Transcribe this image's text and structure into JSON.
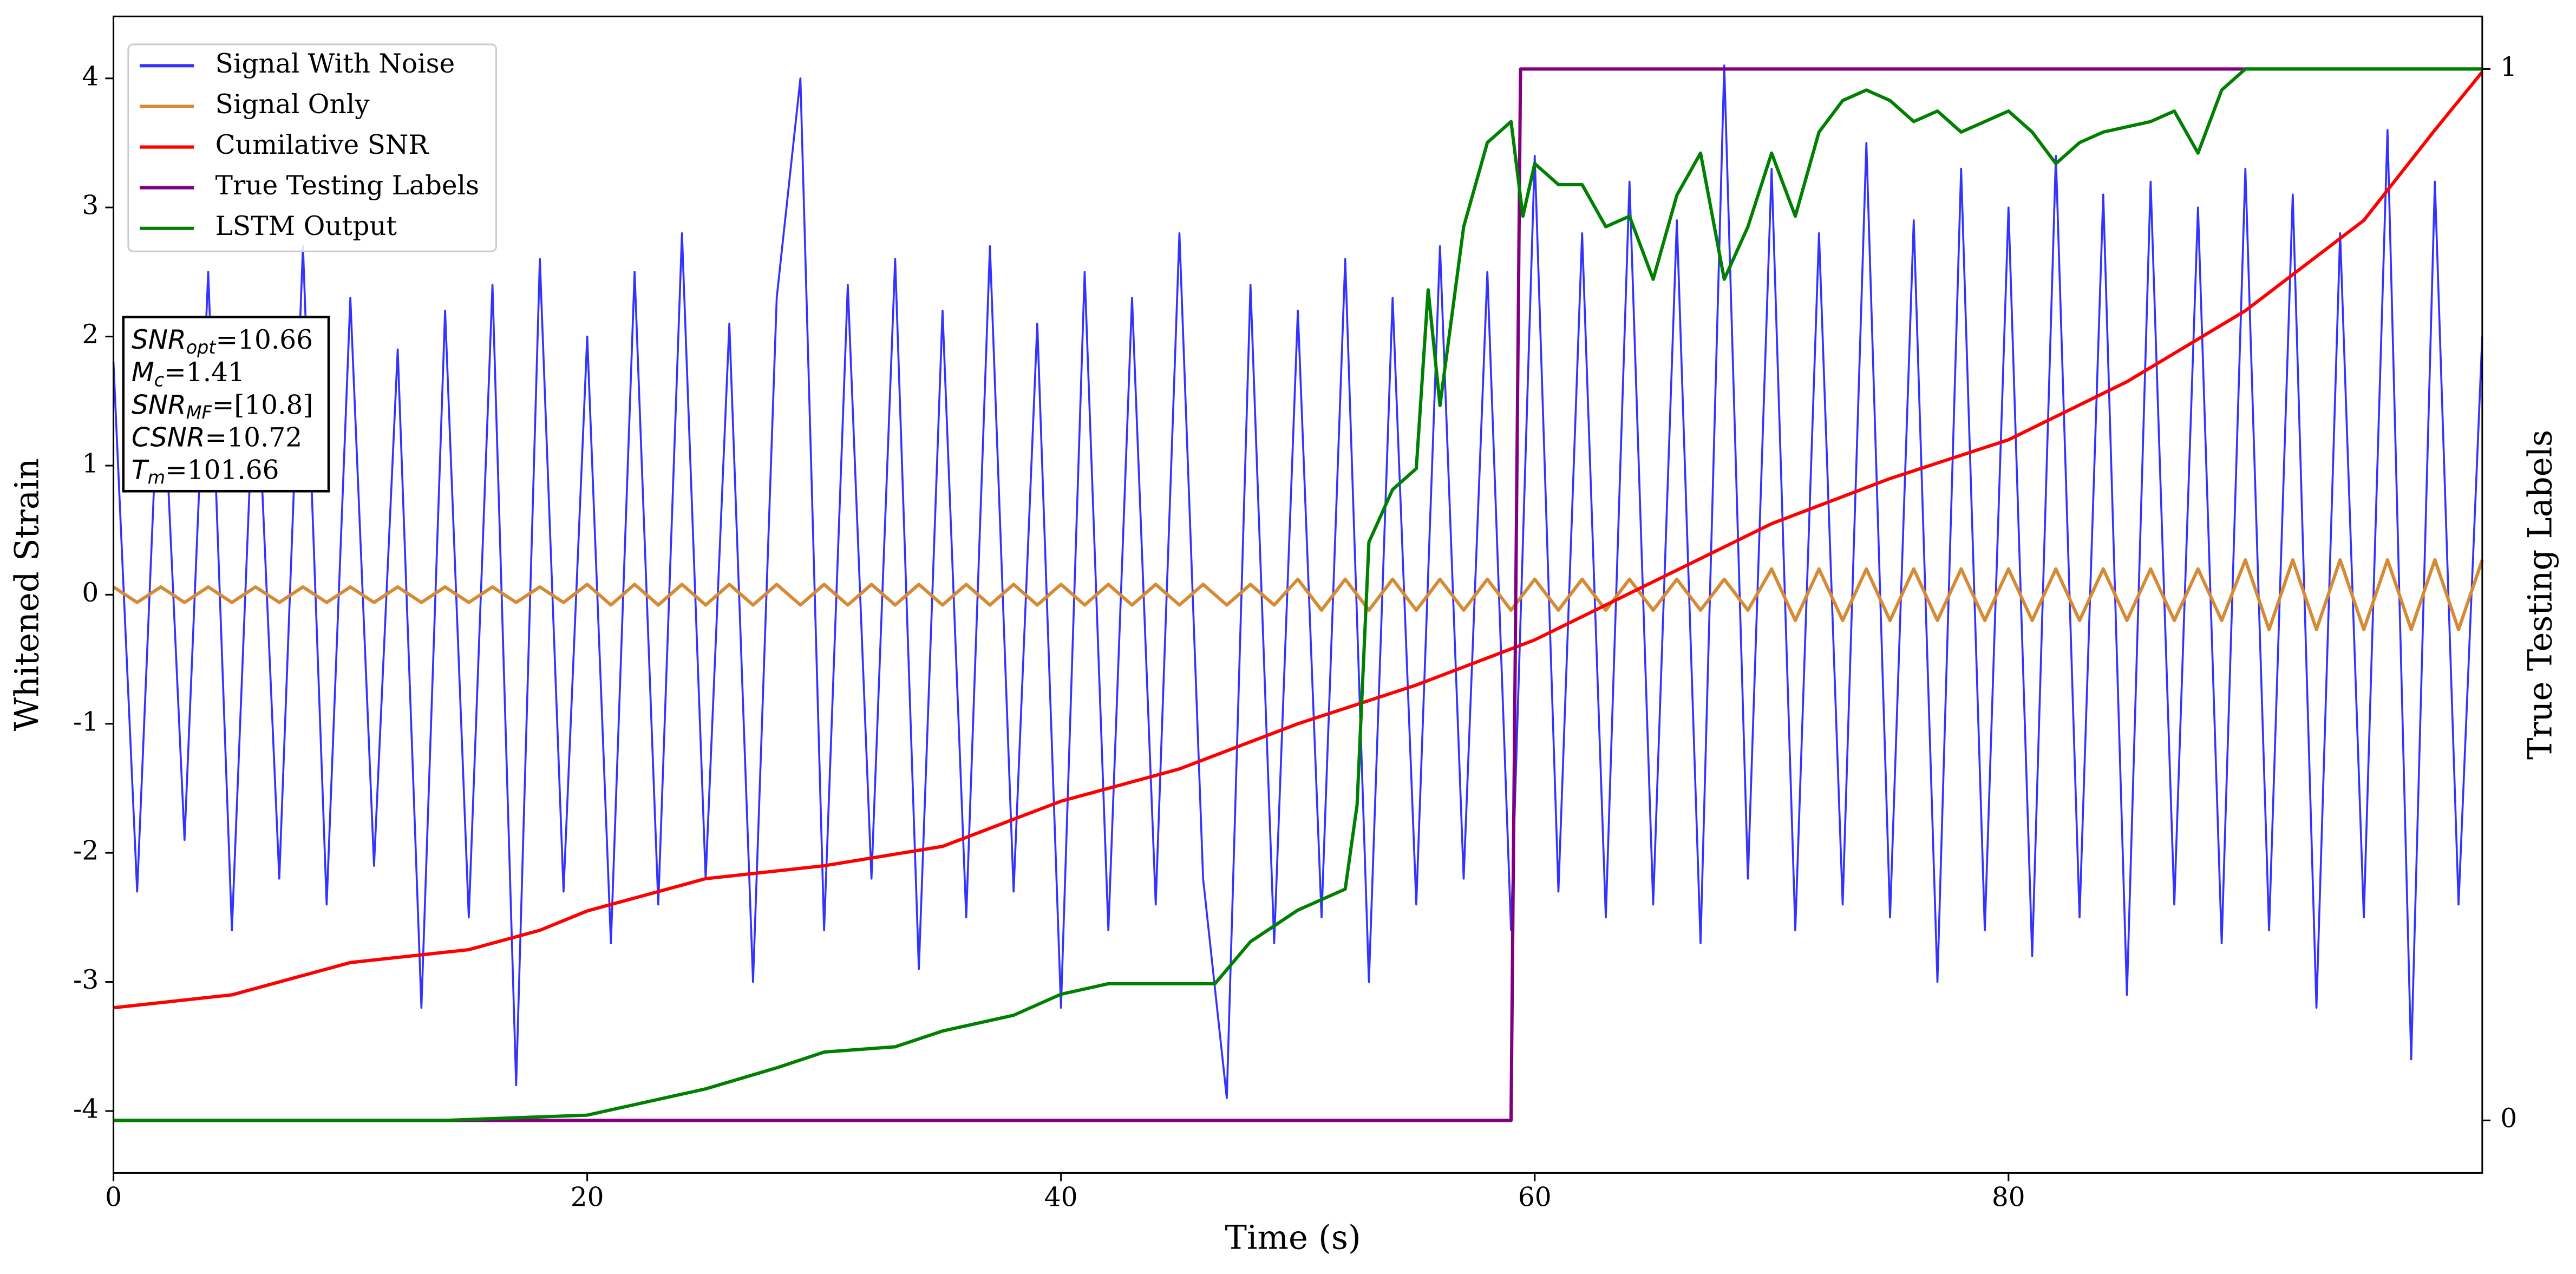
{
  "chart_data": {
    "type": "line",
    "xlabel": "Time (s)",
    "ylabel": "Whitened Strain",
    "y2label": "True Testing Labels",
    "xlim": [
      0,
      100
    ],
    "xticks": [
      0,
      20,
      40,
      60,
      80
    ],
    "ylim": [
      -4.48,
      4.48
    ],
    "yticks": [
      -4,
      -3,
      -2,
      -1,
      0,
      1,
      2,
      3,
      4
    ],
    "y2lim": [
      -0.05,
      1.05
    ],
    "y2ticks": [
      0,
      1
    ],
    "legend": "upper left",
    "x": [
      0,
      1,
      2,
      3,
      4,
      5,
      6,
      7,
      8,
      9,
      10,
      11,
      12,
      13,
      14,
      15,
      16,
      17,
      18,
      19,
      20,
      21,
      22,
      23,
      24,
      25,
      26,
      27,
      28,
      29,
      30,
      31,
      32,
      33,
      34,
      35,
      36,
      37,
      38,
      39,
      40,
      41,
      42,
      43,
      44,
      45,
      46,
      47,
      48,
      49,
      50,
      51,
      52,
      53,
      54,
      55,
      56,
      57,
      58,
      59,
      60,
      61,
      62,
      63,
      64,
      65,
      66,
      67,
      68,
      69,
      70,
      71,
      72,
      73,
      74,
      75,
      76,
      77,
      78,
      79,
      80,
      81,
      82,
      83,
      84,
      85,
      86,
      87,
      88,
      89,
      90,
      91,
      92,
      93,
      94,
      95,
      96,
      97,
      98,
      99,
      100
    ],
    "series": [
      {
        "name": "Signal With Noise",
        "color": "#3333ff",
        "axis": "y",
        "values": [
          1.8,
          -2.3,
          2.1,
          -1.9,
          2.5,
          -2.6,
          2.0,
          -2.2,
          2.7,
          -2.4,
          2.3,
          -2.1,
          1.9,
          -3.2,
          2.2,
          -2.5,
          2.4,
          -3.8,
          2.6,
          -2.3,
          2.0,
          -2.7,
          2.5,
          -2.4,
          2.8,
          -2.2,
          2.1,
          -3.0,
          2.3,
          4.0,
          -2.6,
          2.4,
          -2.2,
          2.6,
          -2.9,
          2.2,
          -2.5,
          2.7,
          -2.3,
          2.1,
          -3.2,
          2.5,
          -2.6,
          2.3,
          -2.4,
          2.8,
          -2.2,
          -3.9,
          2.4,
          -2.7,
          2.2,
          -2.5,
          2.6,
          -3.0,
          2.3,
          -2.4,
          2.7,
          -2.2,
          2.5,
          -2.6,
          3.4,
          -2.3,
          2.8,
          -2.5,
          3.2,
          -2.4,
          2.9,
          -2.7,
          4.1,
          -2.2,
          3.3,
          -2.6,
          2.8,
          -2.4,
          3.5,
          -2.5,
          2.9,
          -3.0,
          3.3,
          -2.6,
          3.0,
          -2.8,
          3.4,
          -2.5,
          3.1,
          -3.1,
          3.2,
          -2.4,
          3.0,
          -2.7,
          3.3,
          -2.6,
          3.1,
          -3.2,
          2.8,
          -2.5,
          3.6,
          -3.6,
          3.2,
          -2.4,
          2.0
        ]
      },
      {
        "name": "Signal Only",
        "color": "#d58a33",
        "axis": "y",
        "values": [
          0.06,
          -0.06,
          0.06,
          -0.06,
          0.06,
          -0.06,
          0.06,
          -0.06,
          0.06,
          -0.06,
          0.06,
          -0.06,
          0.06,
          -0.06,
          0.06,
          -0.06,
          0.06,
          -0.06,
          0.06,
          -0.06,
          0.08,
          -0.08,
          0.08,
          -0.08,
          0.08,
          -0.08,
          0.08,
          -0.08,
          0.08,
          -0.08,
          0.08,
          -0.08,
          0.08,
          -0.08,
          0.08,
          -0.08,
          0.08,
          -0.08,
          0.08,
          -0.08,
          0.08,
          -0.08,
          0.08,
          -0.08,
          0.08,
          -0.08,
          0.08,
          -0.08,
          0.08,
          -0.08,
          0.12,
          -0.12,
          0.12,
          -0.12,
          0.12,
          -0.12,
          0.12,
          -0.12,
          0.12,
          -0.12,
          0.12,
          -0.12,
          0.12,
          -0.12,
          0.12,
          -0.12,
          0.12,
          -0.12,
          0.12,
          -0.12,
          0.2,
          -0.2,
          0.2,
          -0.2,
          0.2,
          -0.2,
          0.2,
          -0.2,
          0.2,
          -0.2,
          0.2,
          -0.2,
          0.2,
          -0.2,
          0.2,
          -0.2,
          0.2,
          -0.2,
          0.2,
          -0.2,
          0.27,
          -0.27,
          0.27,
          -0.27,
          0.27,
          -0.27,
          0.27,
          -0.27,
          0.27,
          -0.27,
          0.27
        ]
      },
      {
        "name": "Cumilative SNR",
        "color": "#ff0000",
        "axis": "y",
        "x": [
          0,
          5,
          10,
          15,
          18,
          20,
          25,
          30,
          35,
          40,
          45,
          50,
          55,
          60,
          65,
          70,
          75,
          80,
          85,
          90,
          95,
          98,
          100
        ],
        "values": [
          -3.2,
          -3.1,
          -2.85,
          -2.75,
          -2.6,
          -2.45,
          -2.2,
          -2.1,
          -1.95,
          -1.6,
          -1.35,
          -1.0,
          -0.7,
          -0.35,
          0.1,
          0.55,
          0.9,
          1.2,
          1.65,
          2.2,
          2.9,
          3.6,
          4.05
        ]
      },
      {
        "name": "True Testing Labels",
        "color": "#800080",
        "axis": "y2",
        "x": [
          0,
          59,
          59.4,
          100
        ],
        "values": [
          0,
          0,
          1,
          1
        ]
      },
      {
        "name": "LSTM Output",
        "color": "#008000",
        "axis": "y2",
        "x": [
          0,
          14,
          20,
          22,
          25,
          28,
          30,
          33,
          35,
          38,
          40,
          42,
          45,
          46.5,
          48,
          50,
          52,
          52.5,
          53,
          54,
          55,
          55.5,
          56,
          57,
          58,
          59,
          59.5,
          60,
          61,
          62,
          63,
          64,
          65,
          66,
          67,
          68,
          69,
          70,
          71,
          72,
          73,
          74,
          75,
          76,
          77,
          78,
          80,
          81,
          82,
          83,
          84,
          86,
          87,
          88,
          89,
          90,
          92,
          94,
          96,
          100
        ],
        "values": [
          0,
          0,
          0.005,
          0.015,
          0.03,
          0.05,
          0.065,
          0.07,
          0.085,
          0.1,
          0.12,
          0.13,
          0.13,
          0.13,
          0.17,
          0.2,
          0.22,
          0.3,
          0.55,
          0.6,
          0.62,
          0.79,
          0.68,
          0.85,
          0.93,
          0.95,
          0.86,
          0.91,
          0.89,
          0.89,
          0.85,
          0.86,
          0.8,
          0.88,
          0.92,
          0.8,
          0.85,
          0.92,
          0.86,
          0.94,
          0.97,
          0.98,
          0.97,
          0.95,
          0.96,
          0.94,
          0.96,
          0.94,
          0.91,
          0.93,
          0.94,
          0.95,
          0.96,
          0.92,
          0.98,
          1.0,
          1.0,
          1.0,
          1.0,
          1.0
        ]
      }
    ],
    "annotations": [
      {
        "base": "SNR",
        "sub": "opt",
        "text": "=10.66"
      },
      {
        "base": "M",
        "sub": "c",
        "text": "=1.41"
      },
      {
        "base": "SNR",
        "sub": "MF",
        "text": "=[10.8]"
      },
      {
        "base": "CSNR",
        "sub": null,
        "text": "=10.72"
      },
      {
        "base": "T",
        "sub": "m",
        "text": "=101.66"
      }
    ]
  }
}
